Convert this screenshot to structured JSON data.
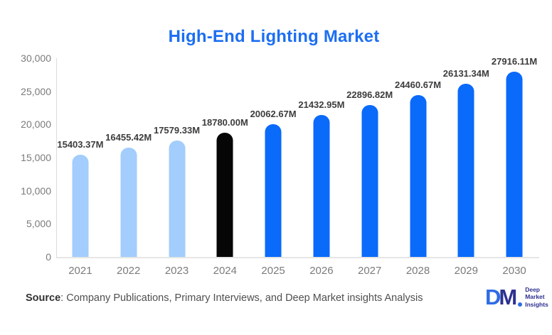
{
  "title": "High-End Lighting Market",
  "colors": {
    "title": "#1c6ef2",
    "bar_light_blue": "#a2cdfc",
    "bar_black": "#060606",
    "bar_blue": "#0a6afa",
    "axis_text": "#7b7b7b",
    "data_label": "#3c3c3c",
    "logo_blue": "#2d6ce5",
    "logo_navy": "#2e3190"
  },
  "source": {
    "label": "Source",
    "text": ": Company Publications, Primary Interviews, and Deep Market insights Analysis"
  },
  "logo": {
    "letter_d": "D",
    "letter_m": "M",
    "line1": "Deep",
    "line2": "Market",
    "line3": "Insights"
  },
  "chart_data": {
    "type": "bar",
    "title": "High-End Lighting Market",
    "categories": [
      "2021",
      "2022",
      "2023",
      "2024",
      "2025",
      "2026",
      "2027",
      "2028",
      "2029",
      "2030"
    ],
    "values": [
      15403.37,
      16455.42,
      17579.33,
      18780.0,
      20062.67,
      21432.95,
      22896.82,
      24460.67,
      26131.34,
      27916.11
    ],
    "data_labels": [
      "15403.37M",
      "16455.42M",
      "17579.33M",
      "18780.00M",
      "20062.67M",
      "21432.95M",
      "22896.82M",
      "24460.67M",
      "26131.34M",
      "27916.11M"
    ],
    "bar_colors": [
      "#a2cdfc",
      "#a2cdfc",
      "#a2cdfc",
      "#060606",
      "#0a6afa",
      "#0a6afa",
      "#0a6afa",
      "#0a6afa",
      "#0a6afa",
      "#0a6afa"
    ],
    "xlabel": "",
    "ylabel": "",
    "ylim": [
      0,
      30000
    ],
    "ytick_step": 5000,
    "ytick_labels": [
      "0",
      "5,000",
      "10,000",
      "15,000",
      "20,000",
      "25,000",
      "30,000"
    ],
    "grid": false,
    "legend": false,
    "unit": "M"
  }
}
